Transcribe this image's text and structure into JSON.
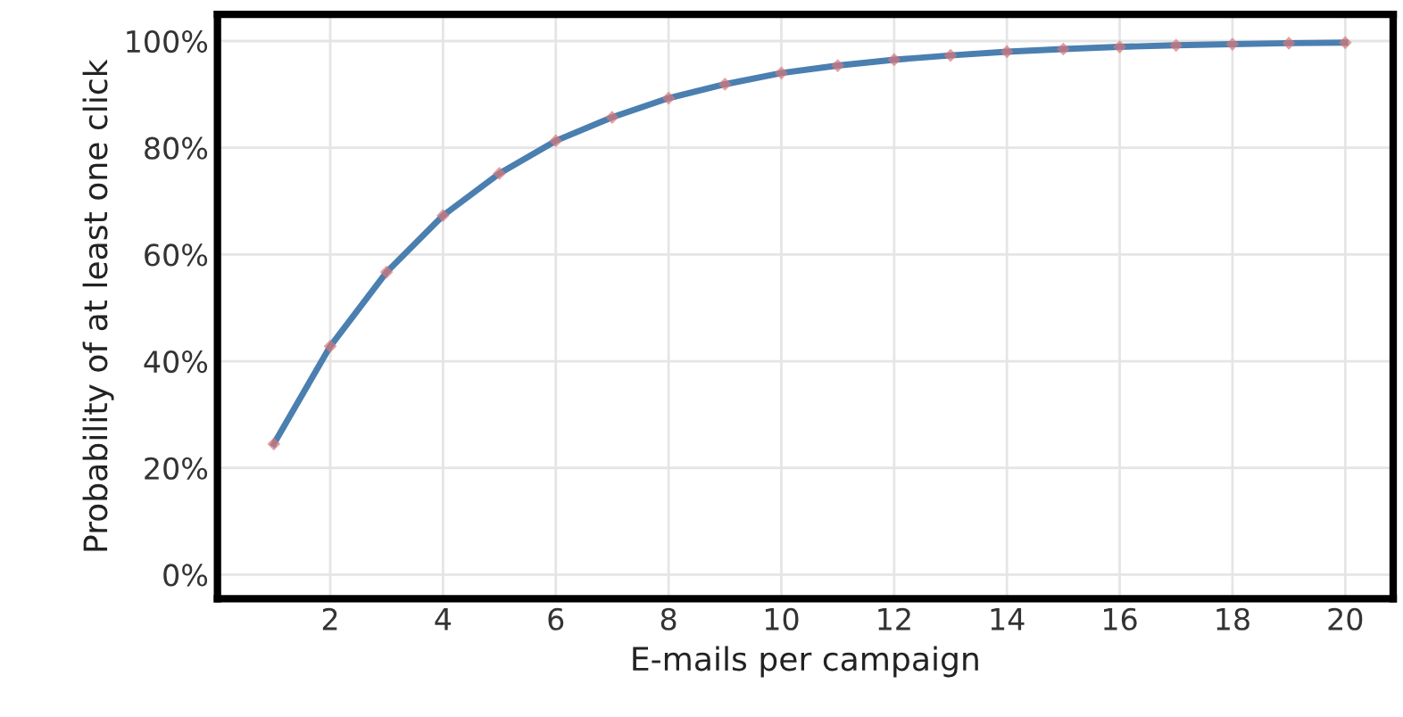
{
  "chart_data": {
    "type": "line",
    "xlabel": "E-mails per campaign",
    "ylabel": "Probability of at least one click",
    "x": [
      1,
      2,
      3,
      4,
      5,
      6,
      7,
      8,
      9,
      10,
      11,
      12,
      13,
      14,
      15,
      16,
      17,
      18,
      19,
      20
    ],
    "series": [
      {
        "color": "#4a7fb0",
        "values": [
          24.5,
          42.8,
          56.7,
          67.3,
          75.2,
          81.3,
          85.7,
          89.3,
          91.9,
          94.0,
          95.4,
          96.5,
          97.3,
          98.0,
          98.5,
          98.9,
          99.2,
          99.4,
          99.6,
          99.7
        ]
      }
    ],
    "xlim": [
      0,
      20.85
    ],
    "xticks": [
      2,
      4,
      6,
      8,
      10,
      12,
      14,
      16,
      18,
      20
    ],
    "ylim": [
      -4.5,
      105
    ],
    "yticks": [
      {
        "value": 0,
        "label": "0%"
      },
      {
        "value": 20,
        "label": "20%"
      },
      {
        "value": 40,
        "label": "40%"
      },
      {
        "value": 60,
        "label": "60%"
      },
      {
        "value": 80,
        "label": "80%"
      },
      {
        "value": 100,
        "label": "100%"
      }
    ],
    "grid": true,
    "marker": "diamond",
    "line_style": "solid"
  }
}
